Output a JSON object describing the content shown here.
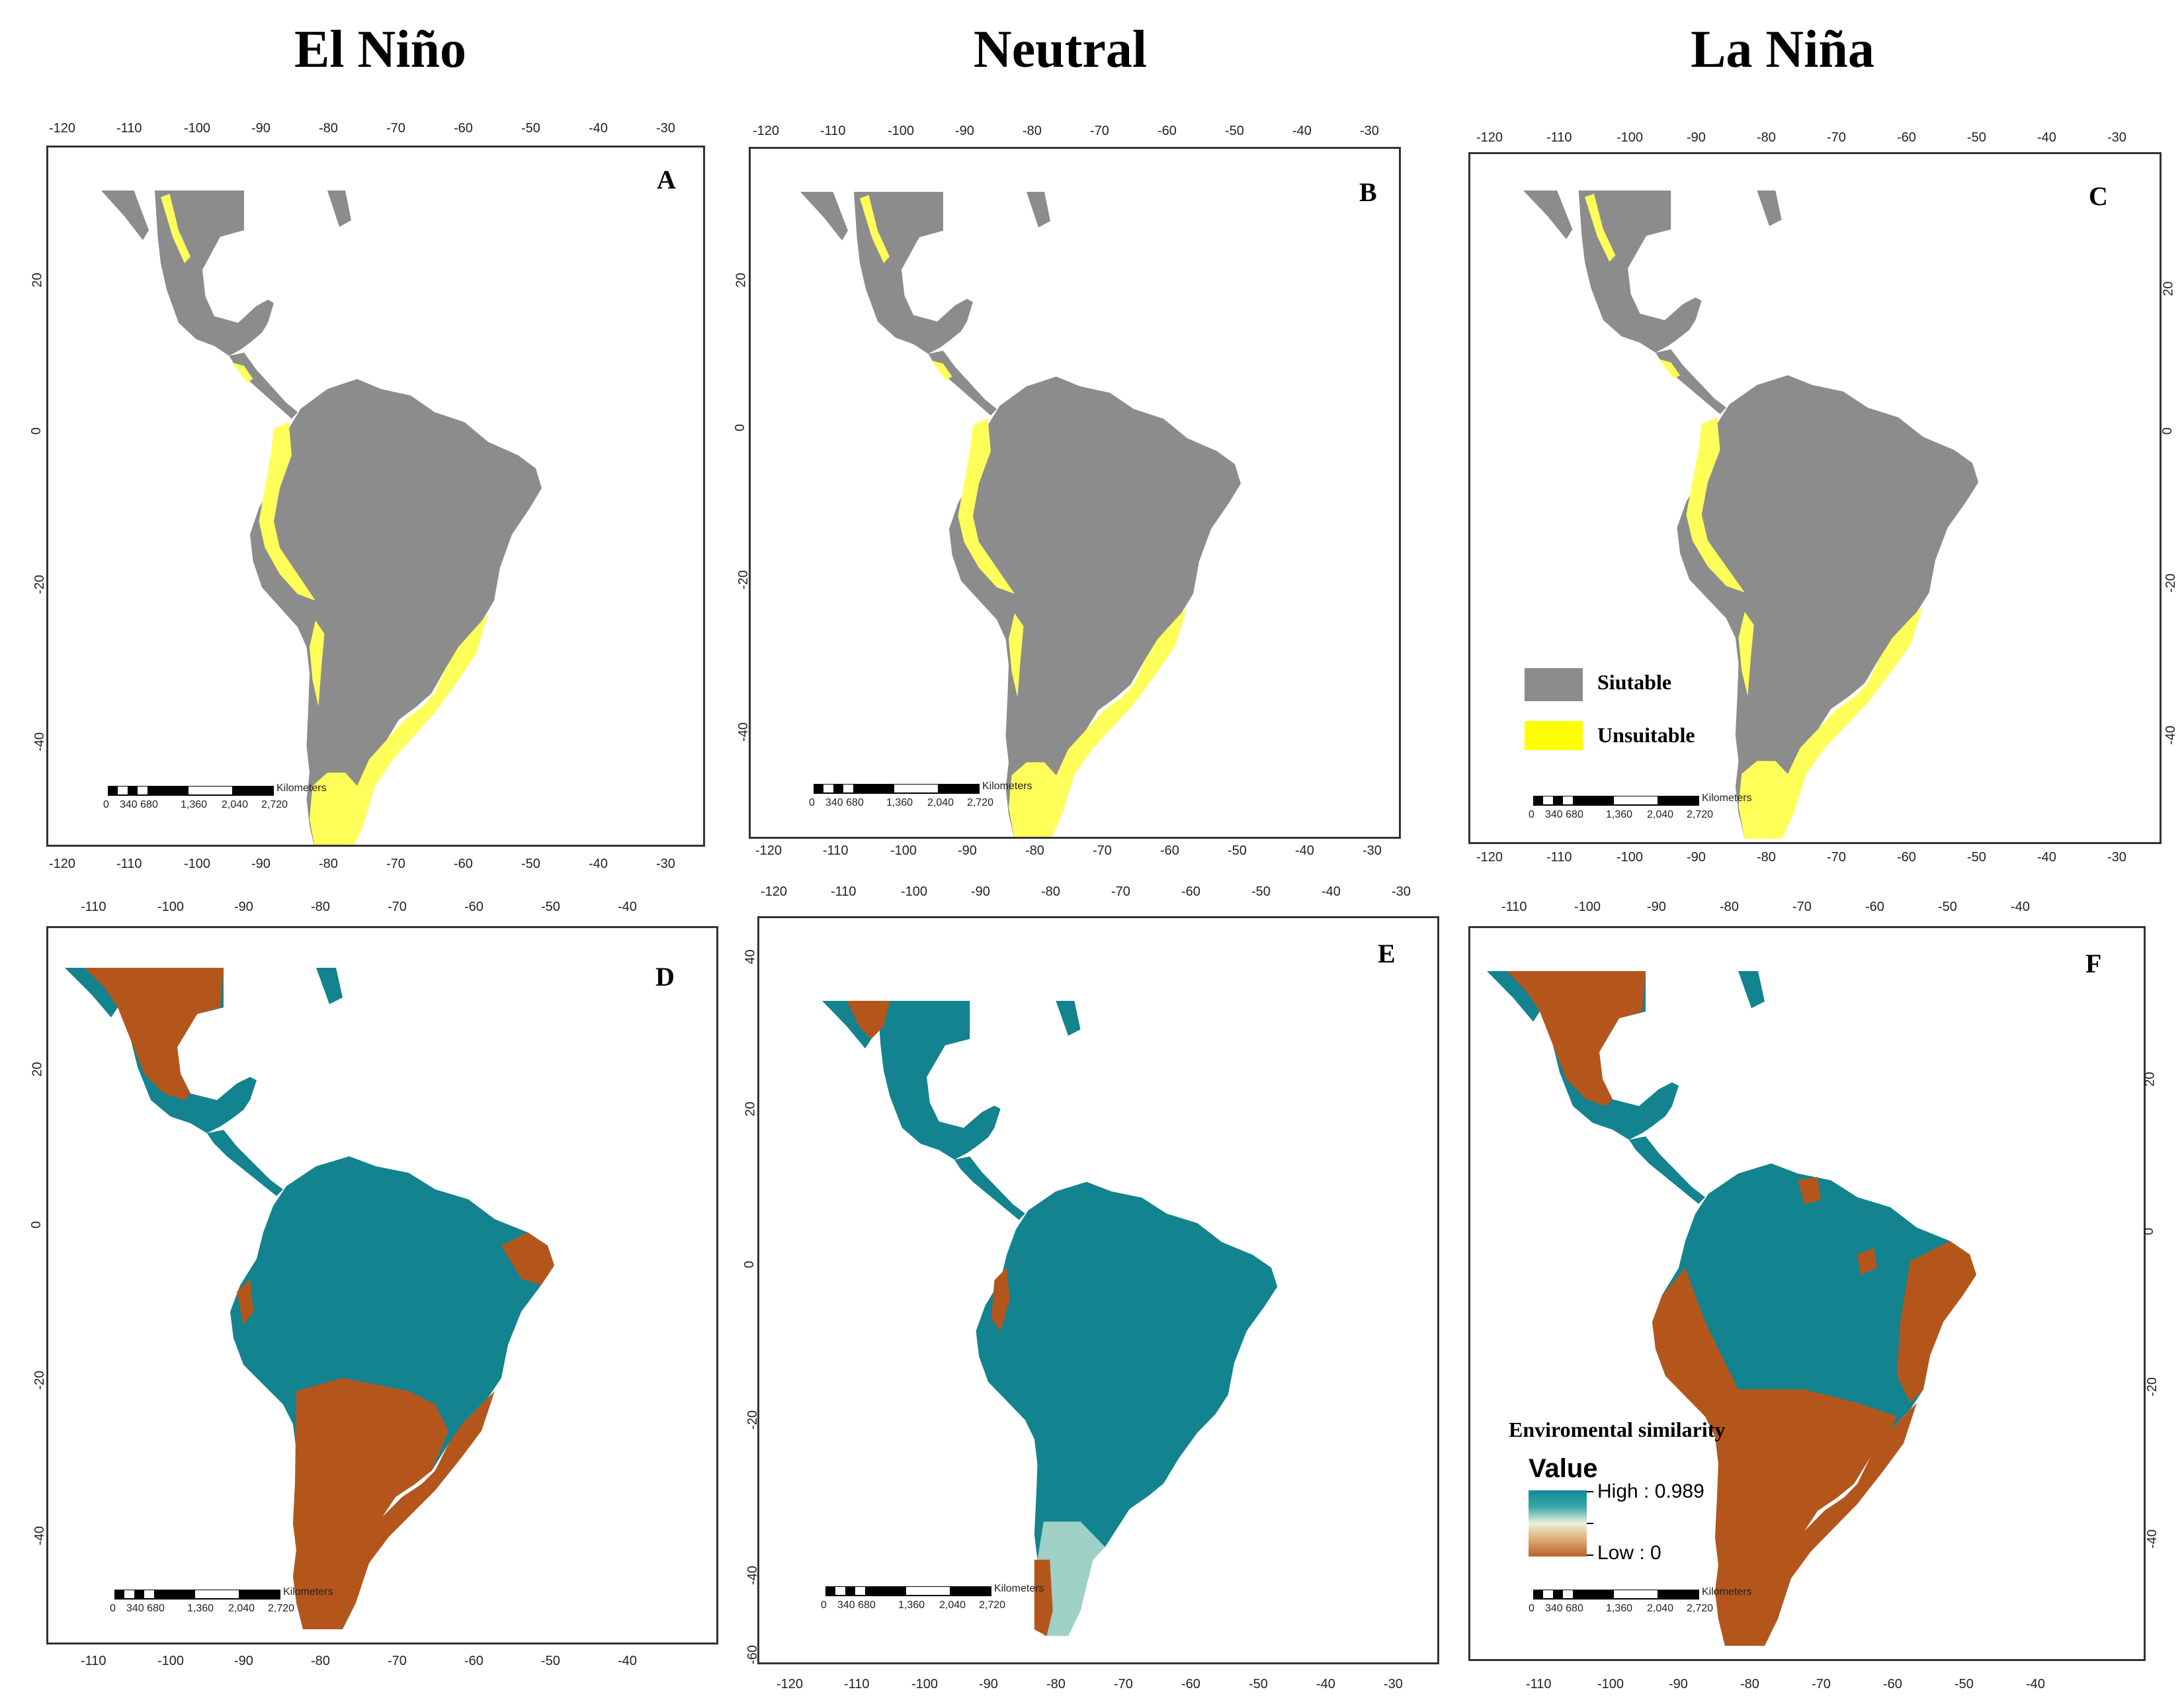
{
  "columns": [
    "El Niño",
    "Neutral",
    "La Niña"
  ],
  "panels": {
    "A": {
      "letter": "A"
    },
    "B": {
      "letter": "B"
    },
    "C": {
      "letter": "C"
    },
    "D": {
      "letter": "D"
    },
    "E": {
      "letter": "E"
    },
    "F": {
      "letter": "F"
    }
  },
  "axes": {
    "lon_top": [
      "-120",
      "-110",
      "-100",
      "-90",
      "-80",
      "-70",
      "-60",
      "-50",
      "-40",
      "-30"
    ],
    "lon_short": [
      "-110",
      "-100",
      "-90",
      "-80",
      "-70",
      "-60",
      "-50",
      "-40"
    ],
    "lat_top": [
      "20",
      "0",
      "-20",
      "-40"
    ],
    "lat_e": [
      "40",
      "20",
      "0",
      "-20",
      "-40",
      "-60"
    ],
    "lat_d": [
      "20",
      "0",
      "-20",
      "-40"
    ]
  },
  "scale": {
    "unit": "Kilometers",
    "labels": [
      "0",
      "340 680",
      "1,360",
      "2,040",
      "2,720"
    ]
  },
  "suitability_legend": {
    "suitable": "Siutable",
    "unsuitable": "Unsuitable"
  },
  "similarity_legend": {
    "title": "Enviromental similarity",
    "value_label": "Value",
    "high": "High : 0.989",
    "low": "Low : 0"
  },
  "colors": {
    "suitable": "#8c8c8c",
    "unsuitable": "#ffff5a",
    "high": "#12838f",
    "low": "#b4561c"
  }
}
